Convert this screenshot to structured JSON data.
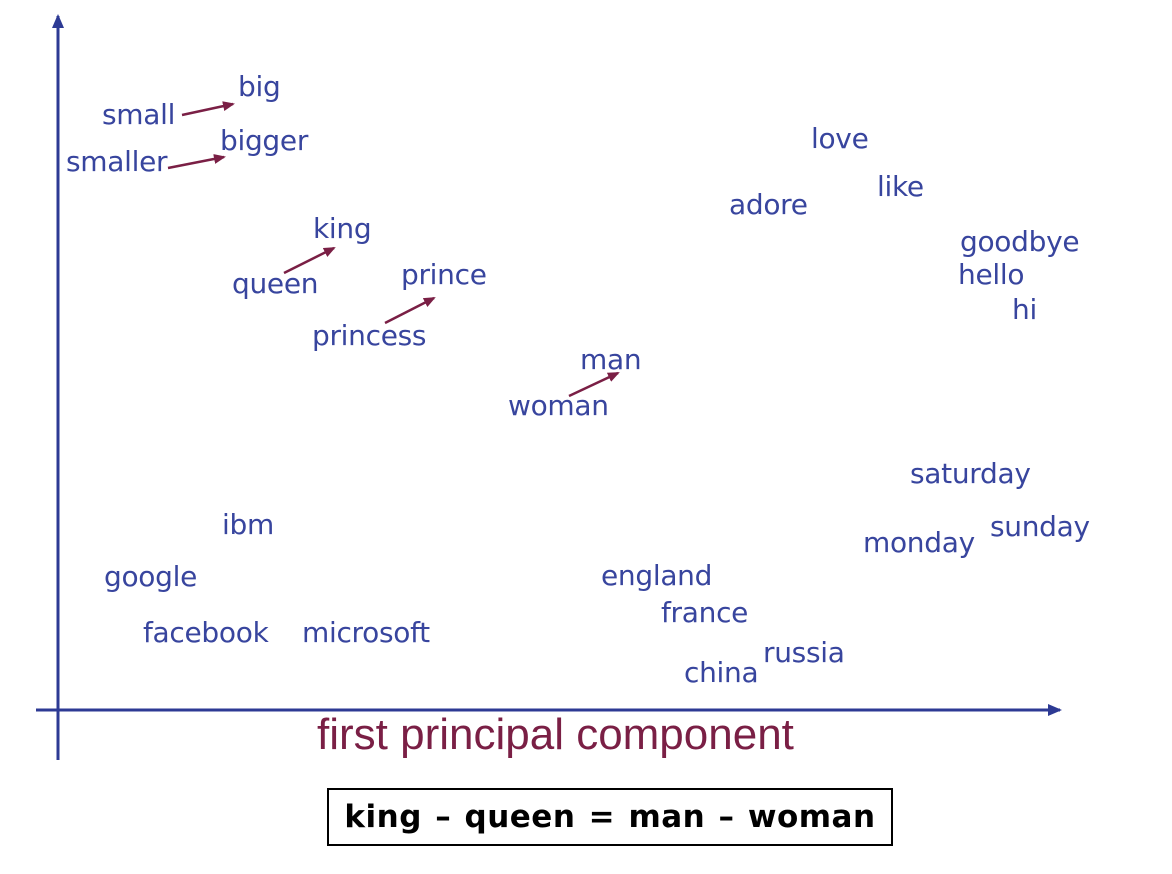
{
  "colors": {
    "words": "#38459e",
    "arrows": "#7a1f45",
    "axes": "#2d3a94",
    "axis_label": "#7a1f45",
    "equation": "#000000"
  },
  "words": {
    "small": "small",
    "big": "big",
    "smaller": "smaller",
    "bigger": "bigger",
    "king": "king",
    "queen": "queen",
    "prince": "prince",
    "princess": "princess",
    "man": "man",
    "woman": "woman",
    "love": "love",
    "like": "like",
    "adore": "adore",
    "goodbye": "goodbye",
    "hello": "hello",
    "hi": "hi",
    "saturday": "saturday",
    "sunday": "sunday",
    "monday": "monday",
    "ibm": "ibm",
    "google": "google",
    "facebook": "facebook",
    "microsoft": "microsoft",
    "england": "england",
    "france": "france",
    "russia": "russia",
    "china": "china"
  },
  "arrows": [
    {
      "from": "small",
      "to": "big"
    },
    {
      "from": "smaller",
      "to": "bigger"
    },
    {
      "from": "queen",
      "to": "king"
    },
    {
      "from": "princess",
      "to": "prince"
    },
    {
      "from": "woman",
      "to": "man"
    }
  ],
  "axis": {
    "x_label": "first principal component"
  },
  "equation": "king – queen = man – woman"
}
